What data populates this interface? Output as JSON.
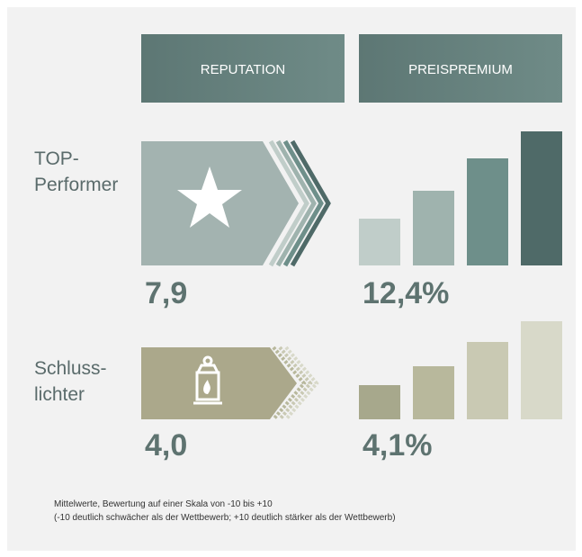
{
  "header": {
    "columns": [
      "REPUTATION",
      "PREISPREMIUM"
    ]
  },
  "rows": [
    {
      "label": [
        "TOP-",
        "Performer"
      ],
      "reputation": "7,9",
      "premium": "12,4%"
    },
    {
      "label": [
        "Schluss-",
        "lichter"
      ],
      "reputation": "4,0",
      "premium": "4,1%"
    }
  ],
  "footnote": [
    "Mittelwerte, Bewertung auf einer Skala von -10 bis +10",
    "(-10 deutlich schwächer als der Wettbewerb; +10 deutlich stärker als der Wettbewerb)"
  ]
}
